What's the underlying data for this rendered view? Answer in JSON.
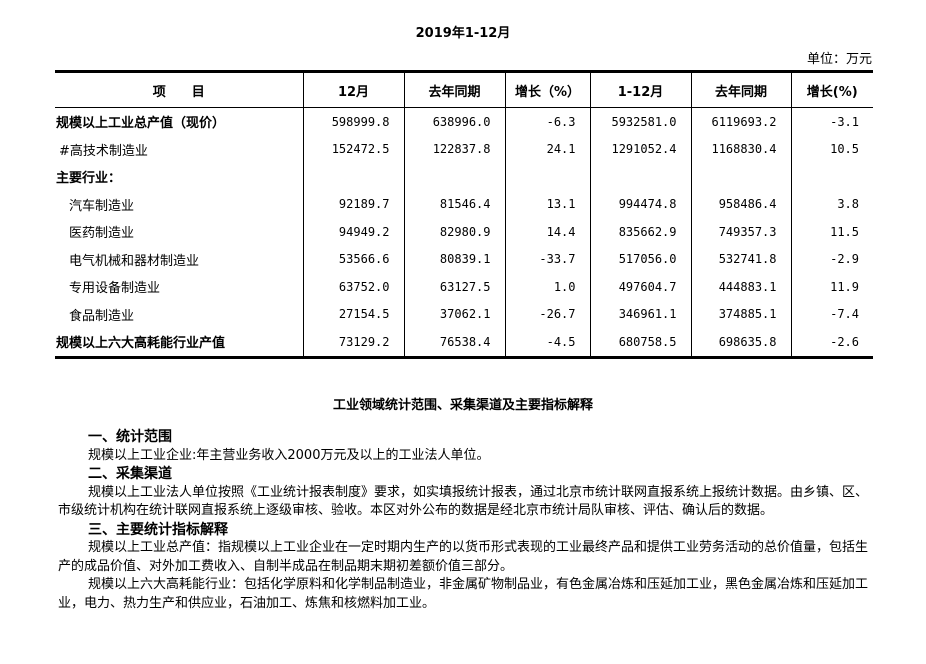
{
  "title": "2019年1-12月",
  "unit": "单位：万元",
  "table": {
    "headers": [
      "项　　目",
      "12月",
      "去年同期",
      "增长（%）",
      "1-12月",
      "去年同期",
      "增长(%)"
    ],
    "rows": [
      {
        "name": "规模以上工业总产值（现价）",
        "style": "b",
        "values": [
          "598999.8",
          "638996.0",
          "-6.3",
          "5932581.0",
          "6119693.2",
          "-3.1"
        ]
      },
      {
        "name": "#高技术制造业",
        "style": "i1",
        "values": [
          "152472.5",
          "122837.8",
          "24.1",
          "1291052.4",
          "1168830.4",
          "10.5"
        ]
      },
      {
        "name": "主要行业：",
        "style": "b",
        "values": [
          "",
          "",
          "",
          "",
          "",
          ""
        ]
      },
      {
        "name": "汽车制造业",
        "style": "i2",
        "values": [
          "92189.7",
          "81546.4",
          "13.1",
          "994474.8",
          "958486.4",
          "3.8"
        ]
      },
      {
        "name": "医药制造业",
        "style": "i2",
        "values": [
          "94949.2",
          "82980.9",
          "14.4",
          "835662.9",
          "749357.3",
          "11.5"
        ]
      },
      {
        "name": "电气机械和器材制造业",
        "style": "i2",
        "values": [
          "53566.6",
          "80839.1",
          "-33.7",
          "517056.0",
          "532741.8",
          "-2.9"
        ]
      },
      {
        "name": "专用设备制造业",
        "style": "i2",
        "values": [
          "63752.0",
          "63127.5",
          "1.0",
          "497604.7",
          "444883.1",
          "11.9"
        ]
      },
      {
        "name": "食品制造业",
        "style": "i2",
        "values": [
          "27154.5",
          "37062.1",
          "-26.7",
          "346961.1",
          "374885.1",
          "-7.4"
        ]
      },
      {
        "name": "规模以上六大高耗能行业产值",
        "style": "b",
        "values": [
          "73129.2",
          "76538.4",
          "-4.5",
          "680758.5",
          "698635.8",
          "-2.6"
        ]
      }
    ]
  },
  "notes": {
    "title": "工业领域统计范围、采集渠道及主要指标解释",
    "blocks": [
      {
        "type": "h",
        "text": "一、统计范围"
      },
      {
        "type": "p",
        "text": "规模以上工业企业:年主营业务收入2000万元及以上的工业法人单位。"
      },
      {
        "type": "h",
        "text": "二、采集渠道"
      },
      {
        "type": "p",
        "text": "规模以上工业法人单位按照《工业统计报表制度》要求，如实填报统计报表，通过北京市统计联网直报系统上报统计数据。由乡镇、区、市级统计机构在统计联网直报系统上逐级审核、验收。本区对外公布的数据是经北京市统计局队审核、评估、确认后的数据。"
      },
      {
        "type": "h",
        "text": "三、主要统计指标解释"
      },
      {
        "type": "p",
        "text": "规模以上工业总产值：指规模以上工业企业在一定时期内生产的以货币形式表现的工业最终产品和提供工业劳务活动的总价值量，包括生产的成品价值、对外加工费收入、自制半成品在制品期末期初差额价值三部分。"
      },
      {
        "type": "p",
        "text": "规模以上六大高耗能行业：包括化学原料和化学制品制造业，非金属矿物制品业，有色金属冶炼和压延加工业，黑色金属冶炼和压延加工业，电力、热力生产和供应业，石油加工、炼焦和核燃料加工业。"
      }
    ]
  }
}
